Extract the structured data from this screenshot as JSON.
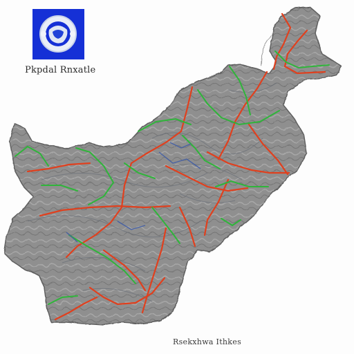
{
  "emblem": {
    "color": "#1530d6",
    "icon": "emblem-icon"
  },
  "caption": "Pkpdal Rnxatle",
  "credit": "Rsekxhwa Ithkes",
  "colors": {
    "land": "#8e8e8e",
    "land_outline": "#5e5e5e",
    "road_red": "#e0401e",
    "road_green": "#2fb53a",
    "road_blue": "#3c5ba8"
  }
}
